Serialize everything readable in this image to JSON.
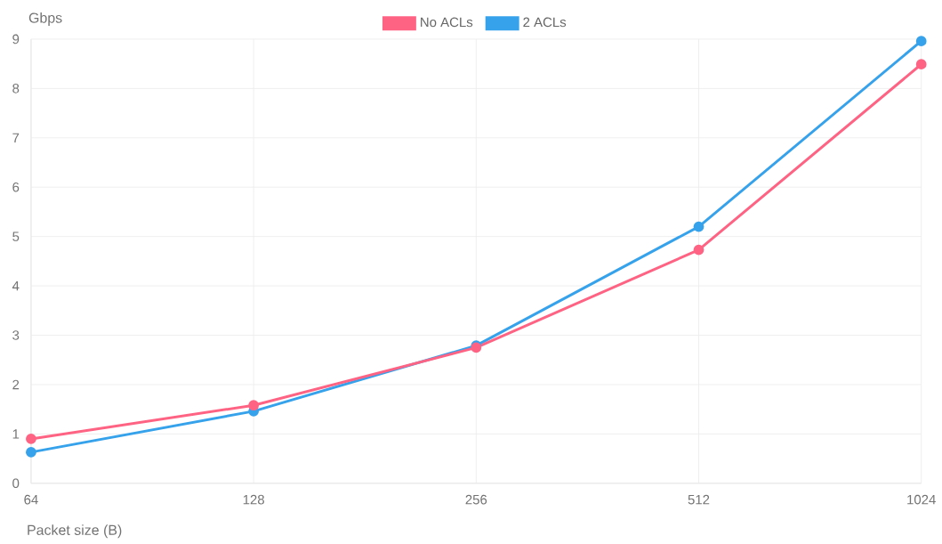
{
  "chart_data": {
    "type": "line",
    "xlabel": "Packet size (B)",
    "ylabel": "Gbps",
    "categories": [
      "64",
      "128",
      "256",
      "512",
      "1024"
    ],
    "series": [
      {
        "name": "No ACLs",
        "color": "#ff6384",
        "values": [
          0.9,
          1.58,
          2.75,
          4.73,
          8.49
        ]
      },
      {
        "name": "2 ACLs",
        "color": "#36a2eb",
        "values": [
          0.63,
          1.46,
          2.79,
          5.2,
          8.96
        ]
      }
    ],
    "ylim": [
      0,
      9
    ],
    "yticks": [
      0,
      1,
      2,
      3,
      4,
      5,
      6,
      7,
      8,
      9
    ],
    "grid": true,
    "legend": "top",
    "marker": "circle",
    "line_style": "solid"
  }
}
